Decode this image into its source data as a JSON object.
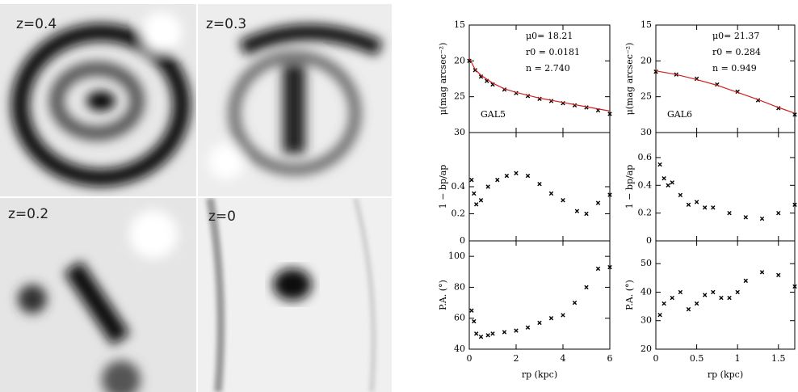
{
  "images": [
    {
      "label": "z=0.4"
    },
    {
      "label": "z=0.3"
    },
    {
      "label": "z=0.2"
    },
    {
      "label": "z=0"
    }
  ],
  "chart_data": [
    {
      "type": "scatter",
      "ylabel": "μ(mag arcsec⁻²)",
      "annotations": [
        "μ0= 18.21",
        "r0 = 0.0181",
        "n = 2.740"
      ],
      "name_label": "GAL5",
      "xlim": [
        0,
        6
      ],
      "xticks": [
        0,
        2,
        4,
        6
      ],
      "ylim": [
        30,
        15
      ],
      "yticks": [
        15,
        20,
        25,
        30
      ],
      "show_xtick_labels": false,
      "series": [
        {
          "marker": "x",
          "color": "#000000",
          "x": [
            0,
            0.25,
            0.5,
            0.75,
            1,
            1.5,
            2,
            2.5,
            3,
            3.5,
            4,
            4.5,
            5,
            5.5,
            6
          ],
          "values": [
            20,
            21.3,
            22.2,
            22.8,
            23.3,
            24.0,
            24.5,
            24.9,
            25.3,
            25.6,
            25.9,
            26.2,
            26.5,
            26.9,
            27.4
          ]
        },
        {
          "marker": "line",
          "color": "#d02020",
          "x": [
            0,
            0.25,
            0.5,
            1,
            1.5,
            2,
            3,
            4,
            5,
            6
          ],
          "values": [
            19.6,
            21.2,
            22.0,
            23.1,
            23.9,
            24.4,
            25.2,
            25.8,
            26.4,
            27.0
          ]
        }
      ]
    },
    {
      "type": "scatter",
      "ylabel": "P.A. (°)",
      "xlabel": "rp (kpc)",
      "xlim": [
        0,
        6
      ],
      "xticks": [
        0,
        2,
        4,
        6
      ],
      "ylim": [
        40,
        110
      ],
      "yticks": [
        40,
        60,
        80,
        100
      ],
      "show_xtick_labels": true,
      "row": 2,
      "series": [
        {
          "marker": "x",
          "color": "#000000",
          "x": [
            0.1,
            0.2,
            0.3,
            0.5,
            0.8,
            1,
            1.5,
            2,
            2.5,
            3,
            3.5,
            4,
            4.5,
            5,
            5.5,
            6
          ],
          "values": [
            65,
            58,
            50,
            48,
            49,
            50,
            51,
            52,
            54,
            57,
            60,
            62,
            70,
            80,
            92,
            93
          ]
        }
      ]
    },
    {
      "type": "scatter",
      "ylabel": "1 − bp/ap",
      "xlim": [
        0,
        6
      ],
      "xticks": [
        0,
        2,
        4,
        6
      ],
      "ylim": [
        0,
        0.8
      ],
      "yticks": [
        0,
        0.2,
        0.4
      ],
      "show_xtick_labels": false,
      "row": 1,
      "series": [
        {
          "marker": "x",
          "color": "#000000",
          "x": [
            0.1,
            0.2,
            0.3,
            0.5,
            0.8,
            1.2,
            1.6,
            2,
            2.5,
            3,
            3.5,
            4,
            4.6,
            5,
            5.5,
            6
          ],
          "values": [
            0.45,
            0.35,
            0.27,
            0.3,
            0.4,
            0.45,
            0.48,
            0.5,
            0.48,
            0.42,
            0.35,
            0.3,
            0.22,
            0.2,
            0.28,
            0.34
          ]
        }
      ]
    },
    {
      "type": "scatter",
      "ylabel": "μ(mag arcsec⁻²)",
      "annotations": [
        "μ0= 21.37",
        "r0 = 0.284",
        "n = 0.949"
      ],
      "name_label": "GAL6",
      "xlim": [
        0,
        1.7
      ],
      "xticks": [
        0,
        0.5,
        1,
        1.5
      ],
      "ylim": [
        30,
        15
      ],
      "yticks": [
        15,
        20,
        25,
        30
      ],
      "show_xtick_labels": false,
      "series": [
        {
          "marker": "x",
          "color": "#000000",
          "x": [
            0,
            0.25,
            0.5,
            0.75,
            1,
            1.25,
            1.5,
            1.7
          ],
          "values": [
            21.5,
            21.9,
            22.5,
            23.3,
            24.3,
            25.5,
            26.6,
            27.5
          ]
        },
        {
          "marker": "line",
          "color": "#d02020",
          "x": [
            0,
            0.25,
            0.5,
            0.75,
            1,
            1.25,
            1.5,
            1.7
          ],
          "values": [
            21.4,
            21.9,
            22.6,
            23.4,
            24.4,
            25.4,
            26.5,
            27.3
          ]
        }
      ]
    },
    {
      "type": "scatter",
      "ylabel": "1 − bp/ap",
      "xlim": [
        0,
        1.7
      ],
      "xticks": [
        0,
        0.5,
        1,
        1.5
      ],
      "ylim": [
        0,
        0.78
      ],
      "yticks": [
        0,
        0.2,
        0.4,
        0.6
      ],
      "show_xtick_labels": false,
      "row": 1,
      "series": [
        {
          "marker": "x",
          "color": "#000000",
          "x": [
            0.05,
            0.1,
            0.15,
            0.2,
            0.3,
            0.4,
            0.5,
            0.6,
            0.7,
            0.9,
            1.1,
            1.3,
            1.5,
            1.7
          ],
          "values": [
            0.55,
            0.45,
            0.4,
            0.42,
            0.33,
            0.26,
            0.28,
            0.24,
            0.24,
            0.2,
            0.17,
            0.16,
            0.2,
            0.26
          ]
        }
      ]
    },
    {
      "type": "scatter",
      "ylabel": "P.A. (°)",
      "xlabel": "rp (kpc)",
      "xlim": [
        0,
        1.7
      ],
      "xticks": [
        0,
        0.5,
        1,
        1.5
      ],
      "ylim": [
        20,
        58
      ],
      "yticks": [
        20,
        30,
        40,
        50
      ],
      "show_xtick_labels": true,
      "row": 2,
      "series": [
        {
          "marker": "x",
          "color": "#000000",
          "x": [
            0.05,
            0.1,
            0.2,
            0.3,
            0.4,
            0.5,
            0.6,
            0.7,
            0.8,
            0.9,
            1,
            1.1,
            1.3,
            1.5,
            1.7
          ],
          "values": [
            32,
            36,
            38,
            40,
            34,
            36,
            39,
            40,
            38,
            38,
            40,
            44,
            47,
            46,
            42
          ]
        }
      ]
    }
  ]
}
